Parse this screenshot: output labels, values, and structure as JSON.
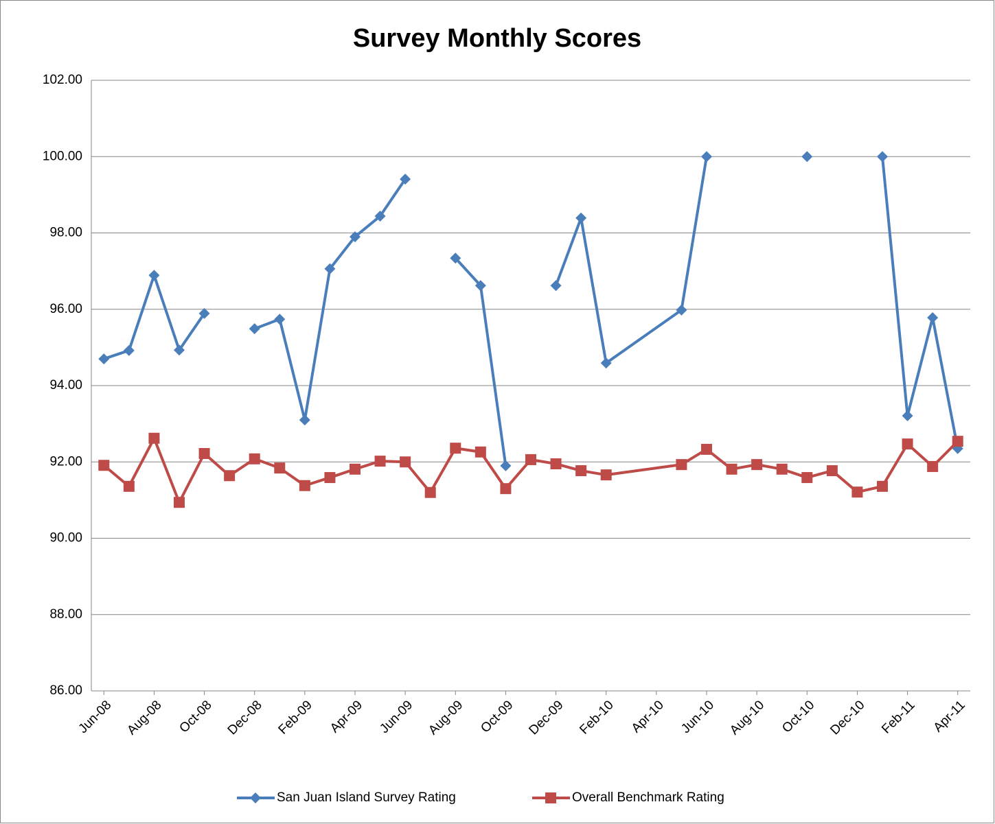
{
  "chart_data": {
    "type": "line",
    "title": "Survey Monthly Scores",
    "x": [
      "Jun-08",
      "Jul-08",
      "Aug-08",
      "Sep-08",
      "Oct-08",
      "Nov-08",
      "Dec-08",
      "Jan-09",
      "Feb-09",
      "Mar-09",
      "Apr-09",
      "May-09",
      "Jun-09",
      "Jul-09",
      "Aug-09",
      "Sep-09",
      "Oct-09",
      "Nov-09",
      "Dec-09",
      "Jan-10",
      "Feb-10",
      "May-10",
      "Jun-10",
      "Jul-10",
      "Aug-10",
      "Sep-10",
      "Oct-10",
      "Nov-10",
      "Dec-10",
      "Jan-11",
      "Feb-11",
      "Mar-11",
      "Apr-11"
    ],
    "xlim": [
      "Jun-08",
      "Apr-11"
    ],
    "xticks": [
      "Jun-08",
      "Aug-08",
      "Oct-08",
      "Dec-08",
      "Feb-09",
      "Apr-09",
      "Jun-09",
      "Aug-09",
      "Oct-09",
      "Dec-09",
      "Feb-10",
      "Apr-10",
      "Jun-10",
      "Aug-10",
      "Oct-10",
      "Dec-10",
      "Feb-11",
      "Apr-11"
    ],
    "series": [
      {
        "name": "San Juan Island Survey Rating",
        "color": "#4a7ebb",
        "marker": "diamond",
        "values": [
          94.7,
          94.92,
          96.89,
          94.93,
          95.89,
          null,
          95.49,
          95.74,
          93.1,
          97.06,
          97.9,
          98.44,
          99.41,
          null,
          97.34,
          96.62,
          91.9,
          null,
          96.62,
          98.39,
          94.59,
          95.98,
          100.0,
          null,
          null,
          null,
          100.0,
          null,
          null,
          100.0,
          93.21,
          95.78,
          92.35
        ]
      },
      {
        "name": "Overall Benchmark Rating",
        "color": "#be4b48",
        "marker": "square",
        "values": [
          91.91,
          91.36,
          92.62,
          90.94,
          92.22,
          91.64,
          92.08,
          91.84,
          91.38,
          91.59,
          91.81,
          92.02,
          92.0,
          91.2,
          92.36,
          92.26,
          91.3,
          92.06,
          91.95,
          91.77,
          91.66,
          91.93,
          92.33,
          91.81,
          91.93,
          91.81,
          91.59,
          91.77,
          91.21,
          91.36,
          92.47,
          91.88,
          92.54
        ]
      }
    ],
    "ylim": [
      86,
      102
    ],
    "yticks": [
      {
        "value": 86,
        "label": "86.00"
      },
      {
        "value": 88,
        "label": "88.00"
      },
      {
        "value": 90,
        "label": "90.00"
      },
      {
        "value": 92,
        "label": "92.00"
      },
      {
        "value": 94,
        "label": "94.00"
      },
      {
        "value": 96,
        "label": "96.00"
      },
      {
        "value": 98,
        "label": "98.00"
      },
      {
        "value": 100,
        "label": "100.00"
      },
      {
        "value": 102,
        "label": "102.00"
      }
    ],
    "grid": true,
    "legend": "bottom"
  }
}
